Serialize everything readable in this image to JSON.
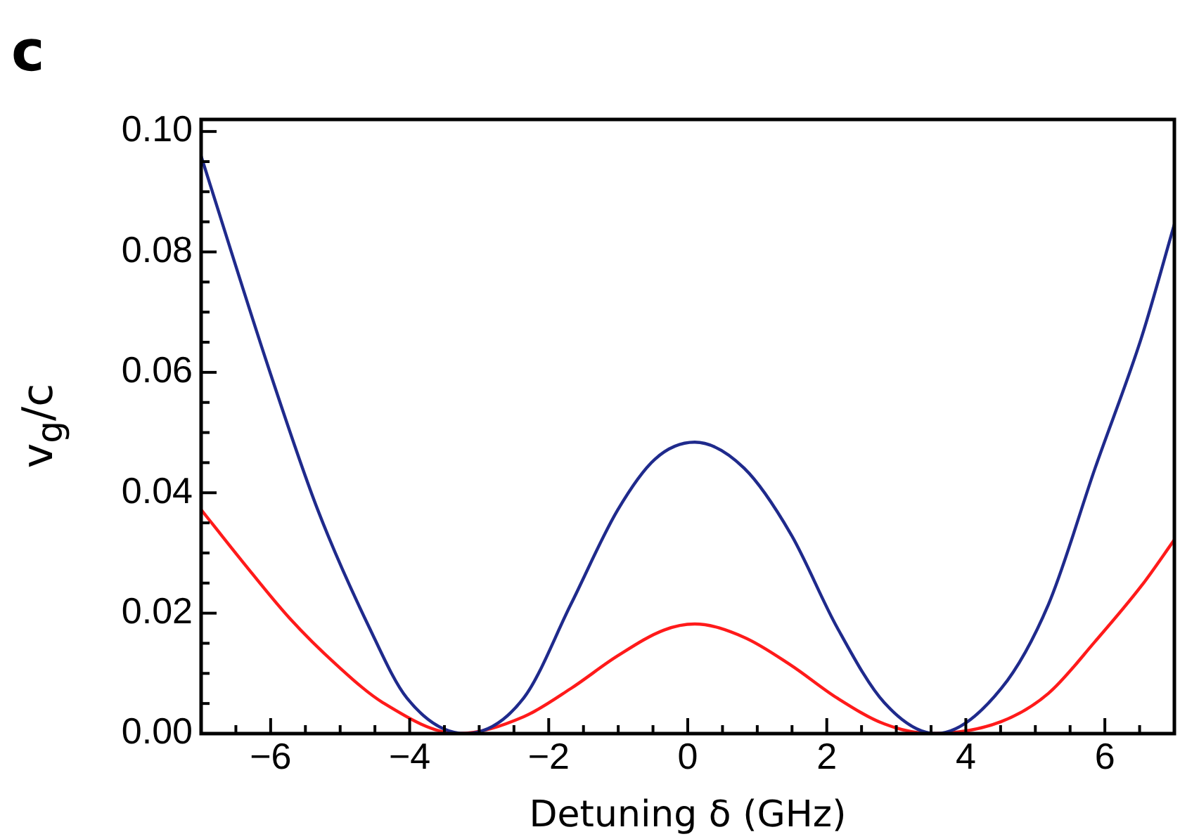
{
  "chart_data": {
    "type": "line",
    "xlabel": "Detuning δ (GHz)",
    "ylabel": "v$_{g}$/c",
    "annotations": [
      "c"
    ],
    "xlim": [
      -7,
      7
    ],
    "ylim": [
      0,
      0.102
    ],
    "xticks": [
      {
        "value": -6,
        "label": "−6"
      },
      {
        "value": -5.5,
        "label": null
      },
      {
        "value": -5,
        "label": null
      },
      {
        "value": -4.5,
        "label": null
      },
      {
        "value": -4,
        "label": "−4"
      },
      {
        "value": -3.5,
        "label": null
      },
      {
        "value": -3,
        "label": null
      },
      {
        "value": -2.5,
        "label": null
      },
      {
        "value": -2,
        "label": "−2"
      },
      {
        "value": -1.5,
        "label": null
      },
      {
        "value": -1,
        "label": null
      },
      {
        "value": -0.5,
        "label": null
      },
      0,
      {
        "value": 0.5,
        "label": null
      },
      {
        "value": 1,
        "label": null
      },
      {
        "value": 1.5,
        "label": null
      },
      2,
      {
        "value": 2.5,
        "label": null
      },
      {
        "value": 3,
        "label": null
      },
      {
        "value": 3.5,
        "label": null
      },
      4,
      {
        "value": 4.5,
        "label": null
      },
      {
        "value": 5,
        "label": null
      },
      {
        "value": 5.5,
        "label": null
      },
      6,
      {
        "value": 6.5,
        "label": null
      },
      {
        "value": -6.5,
        "label": null
      }
    ],
    "yticks": [
      {
        "value": 0,
        "label": "0.00"
      },
      {
        "value": 0.005,
        "label": null
      },
      {
        "value": 0.01,
        "label": null
      },
      {
        "value": 0.015,
        "label": null
      },
      {
        "value": 0.02,
        "label": "0.02"
      },
      {
        "value": 0.025,
        "label": null
      },
      {
        "value": 0.03,
        "label": null
      },
      {
        "value": 0.035,
        "label": null
      },
      {
        "value": 0.04,
        "label": "0.04"
      },
      {
        "value": 0.045,
        "label": null
      },
      {
        "value": 0.05,
        "label": null
      },
      {
        "value": 0.055,
        "label": null
      },
      {
        "value": 0.06,
        "label": "0.06"
      },
      {
        "value": 0.065,
        "label": null
      },
      {
        "value": 0.07,
        "label": null
      },
      {
        "value": 0.075,
        "label": null
      },
      {
        "value": 0.08,
        "label": "0.08"
      },
      {
        "value": 0.085,
        "label": null
      },
      {
        "value": 0.09,
        "label": null
      },
      {
        "value": 0.095,
        "label": null
      },
      {
        "value": 0.1,
        "label": "0.10"
      }
    ],
    "grid": false,
    "legend": false,
    "marker": "none",
    "line_style": "solid",
    "series": [
      {
        "color": "#1f2a8c",
        "x": [
          -7,
          -6,
          -5.32,
          -4.58,
          -4.04,
          -3.2,
          -2.36,
          -1.68,
          -1.01,
          -0.47,
          0.1,
          0.81,
          1.48,
          2.15,
          2.83,
          3.57,
          4.51,
          5.19,
          5.86,
          6.53,
          7
        ],
        "values": [
          0.0959,
          0.0597,
          0.0371,
          0.0176,
          0.0059,
          0,
          0.0059,
          0.0215,
          0.0371,
          0.0456,
          0.0484,
          0.0441,
          0.0332,
          0.0176,
          0.0051,
          0,
          0.0075,
          0.0215,
          0.0441,
          0.0659,
          0.0846
        ]
      },
      {
        "color": "#ff1a1a",
        "x": [
          -7,
          -6.4,
          -5.73,
          -5.05,
          -4.38,
          -3.3,
          -2.36,
          -1.68,
          -1.01,
          -0.34,
          0.1,
          0.81,
          1.48,
          2.15,
          2.83,
          3.5,
          4.51,
          5.19,
          5.86,
          6.53,
          7
        ],
        "values": [
          0.0372,
          0.0285,
          0.0192,
          0.0114,
          0.0051,
          0,
          0.0028,
          0.0075,
          0.0129,
          0.0172,
          0.0182,
          0.016,
          0.0114,
          0.0059,
          0.0016,
          0,
          0.002,
          0.0067,
          0.0153,
          0.0246,
          0.0322
        ]
      }
    ]
  }
}
